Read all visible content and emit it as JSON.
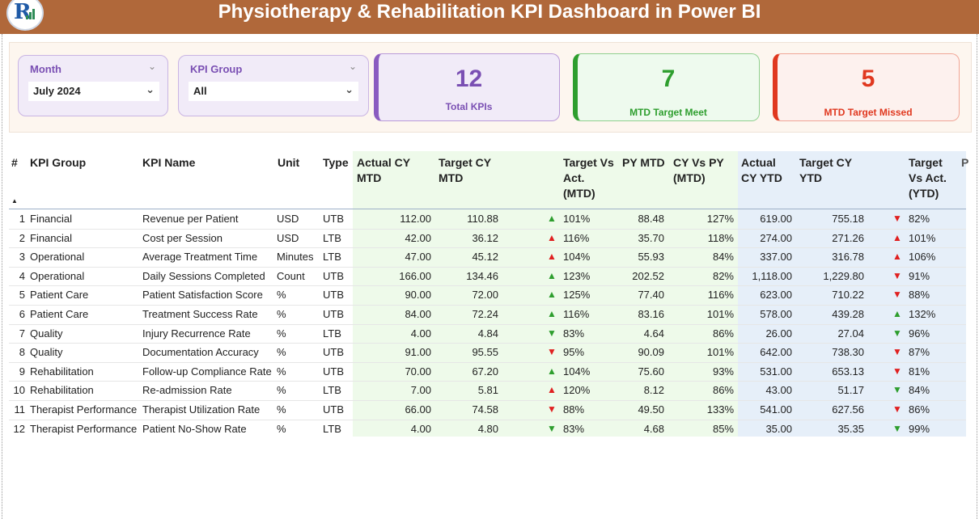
{
  "header": {
    "title": "Physiotherapy & Rehabilitation KPI Dashboard in Power BI",
    "logo_letter": "R"
  },
  "colors": {
    "header_bg": "#b0683a",
    "purple": "#7a4fb3",
    "green": "#2e9e2e",
    "red": "#e0381f",
    "up_green": "#2e9e2e",
    "down_red": "#e02020"
  },
  "slicers": {
    "month": {
      "label": "Month",
      "value": "July 2024",
      "icon": "chevron-down-icon"
    },
    "kpi_group": {
      "label": "KPI Group",
      "value": "All",
      "icon": "chevron-down-icon"
    }
  },
  "cards": {
    "total": {
      "value": "12",
      "label": "Total KPIs"
    },
    "met": {
      "value": "7",
      "label": "MTD Target Meet"
    },
    "missed": {
      "value": "5",
      "label": "MTD Target Missed"
    }
  },
  "table": {
    "headers": {
      "num": "#",
      "group": "KPI Group",
      "name": "KPI Name",
      "unit": "Unit",
      "type": "Type",
      "act_mtd": [
        "Actual CY",
        "MTD"
      ],
      "tgt_mtd": [
        "Target CY",
        "MTD"
      ],
      "tva_mtd": [
        "Target Vs",
        "Act.",
        "(MTD)"
      ],
      "py_mtd": "PY MTD",
      "cyvpy_mtd": [
        "CY Vs PY",
        "(MTD)"
      ],
      "act_ytd": [
        "Actual",
        "CY YTD"
      ],
      "tgt_ytd": [
        "Target CY",
        "YTD"
      ],
      "tva_ytd": [
        "Target",
        "Vs Act.",
        "(YTD)"
      ],
      "more": "P"
    },
    "rows": [
      {
        "n": "1",
        "group": "Financial",
        "name": "Revenue per Patient",
        "unit": "USD",
        "type": "UTB",
        "act_mtd": "112.00",
        "tgt_mtd": "110.88",
        "mtd_icon": "up",
        "tva_mtd": "101%",
        "py_mtd": "88.48",
        "cyvpy": "127%",
        "act_ytd": "619.00",
        "tgt_ytd": "755.18",
        "ytd_icon": "down",
        "tva_ytd": "82%"
      },
      {
        "n": "2",
        "group": "Financial",
        "name": "Cost per Session",
        "unit": "USD",
        "type": "LTB",
        "act_mtd": "42.00",
        "tgt_mtd": "36.12",
        "mtd_icon": "up-red",
        "tva_mtd": "116%",
        "py_mtd": "35.70",
        "cyvpy": "118%",
        "act_ytd": "274.00",
        "tgt_ytd": "271.26",
        "ytd_icon": "up-red",
        "tva_ytd": "101%"
      },
      {
        "n": "3",
        "group": "Operational",
        "name": "Average Treatment Time",
        "unit": "Minutes",
        "type": "LTB",
        "act_mtd": "47.00",
        "tgt_mtd": "45.12",
        "mtd_icon": "up-red",
        "tva_mtd": "104%",
        "py_mtd": "55.93",
        "cyvpy": "84%",
        "act_ytd": "337.00",
        "tgt_ytd": "316.78",
        "ytd_icon": "up-red",
        "tva_ytd": "106%"
      },
      {
        "n": "4",
        "group": "Operational",
        "name": "Daily Sessions Completed",
        "unit": "Count",
        "type": "UTB",
        "act_mtd": "166.00",
        "tgt_mtd": "134.46",
        "mtd_icon": "up",
        "tva_mtd": "123%",
        "py_mtd": "202.52",
        "cyvpy": "82%",
        "act_ytd": "1,118.00",
        "tgt_ytd": "1,229.80",
        "ytd_icon": "down",
        "tva_ytd": "91%"
      },
      {
        "n": "5",
        "group": "Patient Care",
        "name": "Patient Satisfaction Score",
        "unit": "%",
        "type": "UTB",
        "act_mtd": "90.00",
        "tgt_mtd": "72.00",
        "mtd_icon": "up",
        "tva_mtd": "125%",
        "py_mtd": "77.40",
        "cyvpy": "116%",
        "act_ytd": "623.00",
        "tgt_ytd": "710.22",
        "ytd_icon": "down",
        "tva_ytd": "88%"
      },
      {
        "n": "6",
        "group": "Patient Care",
        "name": "Treatment Success Rate",
        "unit": "%",
        "type": "UTB",
        "act_mtd": "84.00",
        "tgt_mtd": "72.24",
        "mtd_icon": "up",
        "tva_mtd": "116%",
        "py_mtd": "83.16",
        "cyvpy": "101%",
        "act_ytd": "578.00",
        "tgt_ytd": "439.28",
        "ytd_icon": "up",
        "tva_ytd": "132%"
      },
      {
        "n": "7",
        "group": "Quality",
        "name": "Injury Recurrence Rate",
        "unit": "%",
        "type": "LTB",
        "act_mtd": "4.00",
        "tgt_mtd": "4.84",
        "mtd_icon": "down-green",
        "tva_mtd": "83%",
        "py_mtd": "4.64",
        "cyvpy": "86%",
        "act_ytd": "26.00",
        "tgt_ytd": "27.04",
        "ytd_icon": "down-green",
        "tva_ytd": "96%"
      },
      {
        "n": "8",
        "group": "Quality",
        "name": "Documentation Accuracy",
        "unit": "%",
        "type": "UTB",
        "act_mtd": "91.00",
        "tgt_mtd": "95.55",
        "mtd_icon": "down",
        "tva_mtd": "95%",
        "py_mtd": "90.09",
        "cyvpy": "101%",
        "act_ytd": "642.00",
        "tgt_ytd": "738.30",
        "ytd_icon": "down",
        "tva_ytd": "87%"
      },
      {
        "n": "9",
        "group": "Rehabilitation",
        "name": "Follow-up Compliance Rate",
        "unit": "%",
        "type": "UTB",
        "act_mtd": "70.00",
        "tgt_mtd": "67.20",
        "mtd_icon": "up",
        "tva_mtd": "104%",
        "py_mtd": "75.60",
        "cyvpy": "93%",
        "act_ytd": "531.00",
        "tgt_ytd": "653.13",
        "ytd_icon": "down",
        "tva_ytd": "81%"
      },
      {
        "n": "10",
        "group": "Rehabilitation",
        "name": "Re-admission Rate",
        "unit": "%",
        "type": "LTB",
        "act_mtd": "7.00",
        "tgt_mtd": "5.81",
        "mtd_icon": "up-red",
        "tva_mtd": "120%",
        "py_mtd": "8.12",
        "cyvpy": "86%",
        "act_ytd": "43.00",
        "tgt_ytd": "51.17",
        "ytd_icon": "down-green",
        "tva_ytd": "84%"
      },
      {
        "n": "11",
        "group": "Therapist Performance",
        "name": "Therapist Utilization Rate",
        "unit": "%",
        "type": "UTB",
        "act_mtd": "66.00",
        "tgt_mtd": "74.58",
        "mtd_icon": "down",
        "tva_mtd": "88%",
        "py_mtd": "49.50",
        "cyvpy": "133%",
        "act_ytd": "541.00",
        "tgt_ytd": "627.56",
        "ytd_icon": "down",
        "tva_ytd": "86%"
      },
      {
        "n": "12",
        "group": "Therapist Performance",
        "name": "Patient No-Show Rate",
        "unit": "%",
        "type": "LTB",
        "act_mtd": "4.00",
        "tgt_mtd": "4.80",
        "mtd_icon": "down-green",
        "tva_mtd": "83%",
        "py_mtd": "4.68",
        "cyvpy": "85%",
        "act_ytd": "35.00",
        "tgt_ytd": "35.35",
        "ytd_icon": "down-green",
        "tva_ytd": "99%"
      }
    ]
  }
}
